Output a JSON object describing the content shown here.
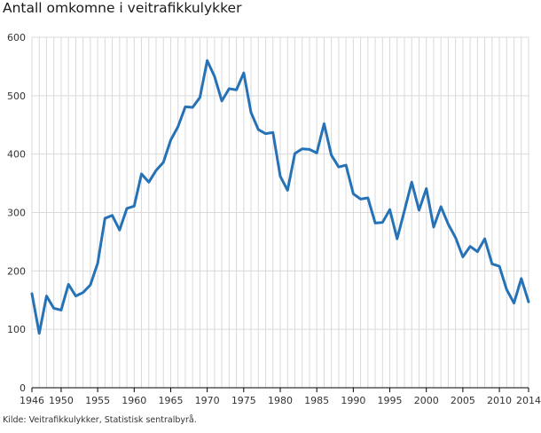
{
  "chart_data": {
    "type": "line",
    "title": "Antall omkomne i veitrafikkulykker",
    "source": "Kilde: Veitrafikkulykker, Statistisk sentralbyrå.",
    "xlabel": "",
    "ylabel": "",
    "xlim": [
      1946,
      2014
    ],
    "ylim": [
      0,
      600
    ],
    "y_ticks": [
      0,
      100,
      200,
      300,
      400,
      500,
      600
    ],
    "x_tick_labels": [
      1946,
      1950,
      1955,
      1960,
      1965,
      1970,
      1975,
      1980,
      1985,
      1990,
      1995,
      2000,
      2005,
      2010,
      2014
    ],
    "grid": "vertical lines for every year, horizontal lines at y ticks",
    "legend": "none",
    "line_color": "#2672b7",
    "series": [
      {
        "x": [
          1946,
          1947,
          1948,
          1949,
          1950,
          1951,
          1952,
          1953,
          1954,
          1955,
          1956,
          1957,
          1958,
          1959,
          1960,
          1961,
          1962,
          1963,
          1964,
          1965,
          1966,
          1967,
          1968,
          1969,
          1970,
          1971,
          1972,
          1973,
          1974,
          1975,
          1976,
          1977,
          1978,
          1979,
          1980,
          1981,
          1982,
          1983,
          1984,
          1985,
          1986,
          1987,
          1988,
          1989,
          1990,
          1991,
          1992,
          1993,
          1994,
          1995,
          1996,
          1997,
          1998,
          1999,
          2000,
          2001,
          2002,
          2003,
          2004,
          2005,
          2006,
          2007,
          2008,
          2009,
          2010,
          2011,
          2012,
          2013,
          2014
        ],
        "values": [
          161,
          93,
          157,
          136,
          133,
          177,
          157,
          163,
          176,
          213,
          290,
          295,
          270,
          307,
          311,
          366,
          352,
          372,
          386,
          424,
          447,
          481,
          480,
          497,
          560,
          533,
          491,
          512,
          510,
          539,
          471,
          442,
          435,
          437,
          362,
          338,
          401,
          409,
          408,
          402,
          452,
          398,
          378,
          381,
          332,
          323,
          325,
          282,
          283,
          305,
          255,
          303,
          352,
          304,
          341,
          275,
          310,
          280,
          257,
          224,
          242,
          233,
          255,
          212,
          208,
          168,
          145,
          187,
          147
        ]
      }
    ]
  }
}
